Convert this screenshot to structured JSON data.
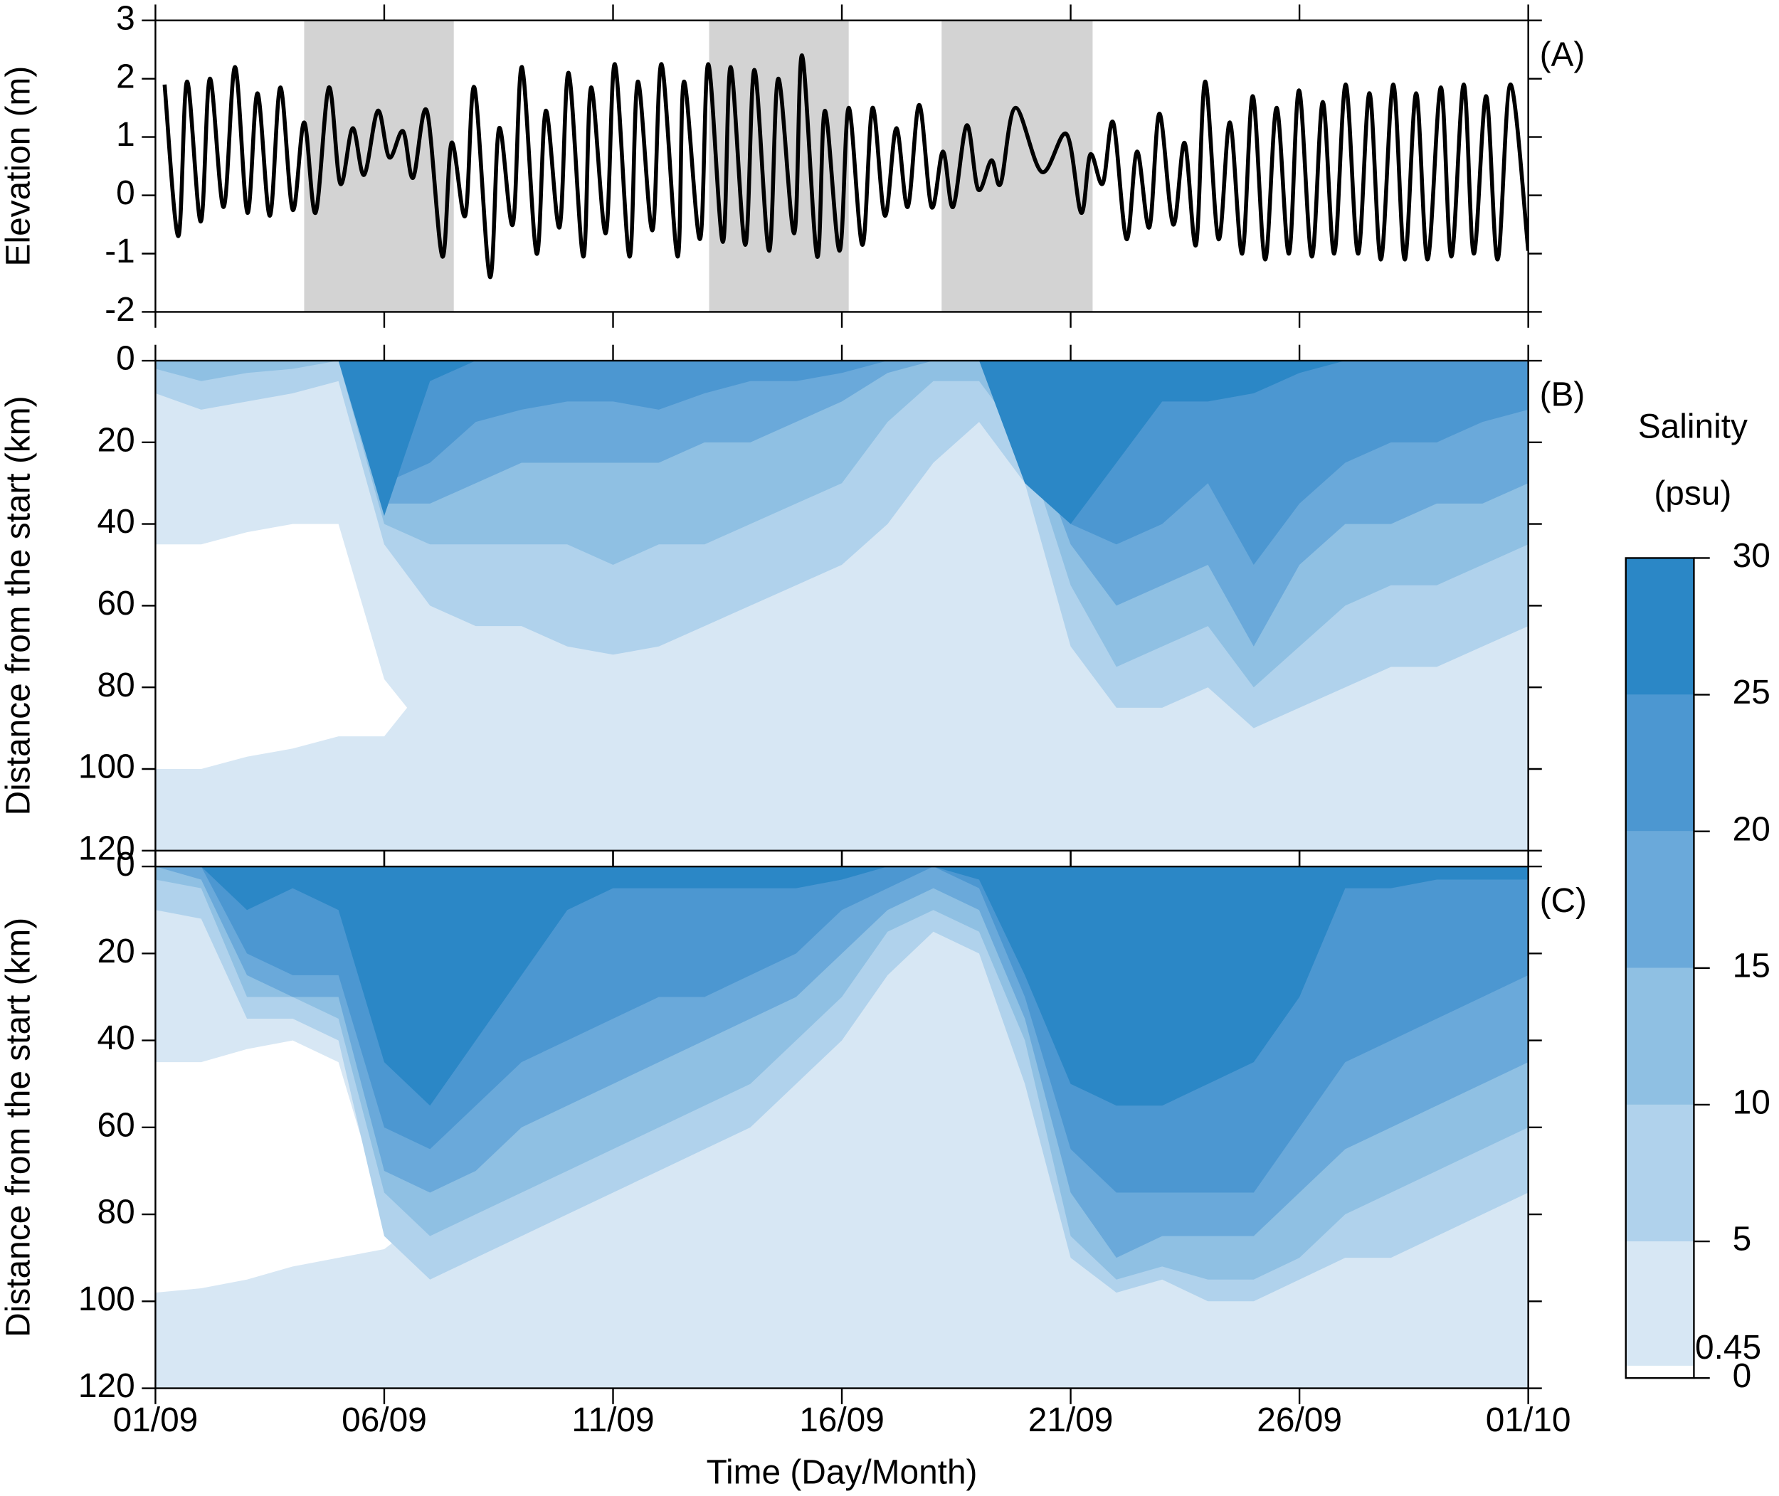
{
  "chart_data": [
    {
      "type": "line",
      "label": "(A)",
      "ylabel": "Elevation (m)",
      "xlim": [
        0,
        30
      ],
      "xticks": [
        0,
        5,
        10,
        15,
        20,
        25,
        30
      ],
      "xtick_labels": false,
      "ylim": [
        -2,
        3
      ],
      "yticks": [
        -2,
        -1,
        0,
        1,
        2,
        3
      ],
      "shaded_spans": [
        [
          3.25,
          6.52
        ],
        [
          12.1,
          15.15
        ],
        [
          17.18,
          20.48
        ]
      ],
      "shade_color": "#d3d3d3",
      "series": [
        {
          "color": "#000000",
          "x": [
            0.2,
            0.5,
            0.69,
            0.99,
            1.19,
            1.49,
            1.74,
            2.01,
            2.23,
            2.5,
            2.73,
            3.0,
            3.25,
            3.5,
            3.79,
            4.04,
            4.31,
            4.56,
            4.86,
            5.11,
            5.41,
            5.63,
            5.93,
            6.27,
            6.47,
            6.77,
            6.97,
            7.31,
            7.51,
            7.81,
            8.01,
            8.33,
            8.53,
            8.83,
            9.03,
            9.35,
            9.52,
            9.84,
            10.04,
            10.36,
            10.54,
            10.86,
            11.06,
            11.41,
            11.55,
            11.9,
            12.08,
            12.4,
            12.57,
            12.89,
            13.09,
            13.41,
            13.61,
            13.96,
            14.13,
            14.46,
            14.63,
            14.95,
            15.15,
            15.45,
            15.67,
            15.94,
            16.19,
            16.44,
            16.69,
            16.96,
            17.21,
            17.43,
            17.73,
            17.98,
            18.27,
            18.47,
            18.79,
            19.37,
            19.91,
            20.23,
            20.43,
            20.7,
            20.93,
            21.22,
            21.45,
            21.72,
            21.94,
            22.24,
            22.49,
            22.74,
            22.94,
            23.23,
            23.48,
            23.75,
            23.98,
            24.25,
            24.5,
            24.77,
            24.99,
            25.27,
            25.51,
            25.76,
            26.01,
            26.28,
            26.53,
            26.78,
            27.05,
            27.3,
            27.55,
            27.8,
            28.09,
            28.32,
            28.59,
            28.81,
            29.08,
            29.33,
            29.61,
            30.0
          ],
          "values": [
            1.9,
            -0.7,
            1.95,
            -0.45,
            2.0,
            -0.2,
            2.2,
            -0.3,
            1.75,
            -0.35,
            1.85,
            -0.25,
            1.25,
            -0.3,
            1.85,
            0.2,
            1.15,
            0.35,
            1.45,
            0.65,
            1.1,
            0.3,
            1.45,
            -1.05,
            0.9,
            -0.35,
            1.85,
            -1.4,
            1.15,
            -0.5,
            2.2,
            -1.0,
            1.45,
            -0.55,
            2.1,
            -1.05,
            1.85,
            -0.65,
            2.25,
            -1.05,
            1.95,
            -0.6,
            2.25,
            -1.05,
            1.95,
            -0.75,
            2.25,
            -0.8,
            2.2,
            -0.85,
            2.15,
            -0.95,
            2.0,
            -0.65,
            2.4,
            -1.05,
            1.45,
            -0.95,
            1.5,
            -0.85,
            1.5,
            -0.35,
            1.15,
            -0.2,
            1.55,
            -0.2,
            0.75,
            -0.2,
            1.2,
            0.1,
            0.6,
            0.2,
            1.5,
            0.4,
            1.05,
            -0.3,
            0.7,
            0.2,
            1.25,
            -0.75,
            0.75,
            -0.55,
            1.4,
            -0.5,
            0.9,
            -0.85,
            1.95,
            -0.75,
            1.25,
            -1.0,
            1.7,
            -1.1,
            1.5,
            -1.0,
            1.8,
            -1.05,
            1.6,
            -1.0,
            1.9,
            -1.0,
            1.75,
            -1.1,
            1.9,
            -1.1,
            1.75,
            -1.1,
            1.85,
            -1.05,
            1.9,
            -1.0,
            1.7,
            -1.1,
            1.9,
            -0.95
          ]
        }
      ]
    },
    {
      "type": "contour",
      "label": "(B)",
      "ylabel": "Distance from the start (km)",
      "xlim": [
        0,
        30
      ],
      "xticks": [
        0,
        5,
        10,
        15,
        20,
        25,
        30
      ],
      "xtick_labels": false,
      "ylim": [
        0,
        120
      ],
      "yticks": [
        0,
        20,
        40,
        60,
        80,
        100,
        120
      ],
      "y_inverted": true,
      "x": [
        0,
        1,
        2,
        3,
        4,
        5,
        6,
        7,
        8,
        9,
        10,
        11,
        12,
        13,
        14,
        15,
        16,
        17,
        18,
        19,
        20,
        21,
        22,
        23,
        24,
        25,
        26,
        27,
        28,
        29,
        30
      ],
      "isodepth": [
        [
          8,
          12,
          10,
          8,
          5,
          45,
          60,
          65,
          65,
          70,
          72,
          70,
          65,
          60,
          55,
          50,
          40,
          25,
          15,
          30,
          70,
          85,
          85,
          80,
          90,
          85,
          80,
          75,
          75,
          70,
          65
        ],
        [
          2,
          5,
          3,
          2,
          0,
          40,
          45,
          45,
          45,
          45,
          50,
          45,
          45,
          40,
          35,
          30,
          15,
          5,
          5,
          20,
          55,
          75,
          70,
          65,
          80,
          70,
          60,
          55,
          55,
          50,
          45
        ],
        [
          0,
          0,
          0,
          0,
          0,
          35,
          35,
          30,
          25,
          25,
          25,
          25,
          20,
          20,
          15,
          10,
          3,
          0,
          0,
          15,
          45,
          60,
          55,
          50,
          70,
          50,
          40,
          40,
          35,
          35,
          30
        ],
        [
          0,
          0,
          0,
          0,
          0,
          30,
          25,
          15,
          12,
          10,
          10,
          12,
          8,
          5,
          5,
          3,
          0,
          0,
          0,
          10,
          40,
          45,
          40,
          30,
          50,
          35,
          25,
          20,
          20,
          15,
          12
        ],
        [
          0,
          0,
          0,
          0,
          0,
          38,
          5,
          0,
          0,
          0,
          0,
          0,
          0,
          0,
          0,
          0,
          0,
          0,
          0,
          30,
          40,
          25,
          10,
          10,
          8,
          3,
          0,
          0,
          0,
          0,
          0
        ]
      ],
      "fresh_top": [
        45,
        45,
        42,
        40,
        40,
        78,
        null,
        null,
        null,
        null,
        null,
        null,
        null,
        null,
        null,
        null,
        null,
        null,
        null,
        null,
        null,
        null,
        null,
        null,
        null,
        null,
        null,
        null,
        null,
        null,
        null
      ],
      "fresh_bottom": [
        100,
        100,
        97,
        95,
        92,
        92,
        null,
        null,
        null,
        null,
        null,
        null,
        null,
        null,
        null,
        null,
        null,
        null,
        null,
        null,
        null,
        null,
        null,
        null,
        null,
        null,
        null,
        null,
        null,
        null,
        null
      ]
    },
    {
      "type": "contour",
      "label": "(C)",
      "ylabel": "Distance from the start (km)",
      "xlabel": "Time (Day/Month)",
      "xlim": [
        0,
        30
      ],
      "xticks": [
        {
          "value": 0,
          "label": "01/09"
        },
        {
          "value": 5,
          "label": "06/09"
        },
        {
          "value": 10,
          "label": "11/09"
        },
        {
          "value": 15,
          "label": "16/09"
        },
        {
          "value": 20,
          "label": "21/09"
        },
        {
          "value": 25,
          "label": "26/09"
        },
        {
          "value": 30,
          "label": "01/10"
        }
      ],
      "xtick_labels": true,
      "ylim": [
        0,
        120
      ],
      "yticks": [
        0,
        20,
        40,
        60,
        80,
        100,
        120
      ],
      "y_inverted": true,
      "x": [
        0,
        1,
        2,
        3,
        4,
        5,
        6,
        7,
        8,
        9,
        10,
        11,
        12,
        13,
        14,
        15,
        16,
        17,
        18,
        19,
        20,
        21,
        22,
        23,
        24,
        25,
        26,
        27,
        28,
        29,
        30
      ],
      "isodepth": [
        [
          10,
          12,
          35,
          35,
          40,
          85,
          95,
          90,
          85,
          80,
          75,
          70,
          65,
          60,
          50,
          40,
          25,
          15,
          20,
          50,
          90,
          98,
          95,
          100,
          100,
          95,
          90,
          90,
          85,
          80,
          75
        ],
        [
          3,
          5,
          30,
          30,
          35,
          75,
          85,
          80,
          75,
          70,
          65,
          60,
          55,
          50,
          40,
          30,
          15,
          10,
          15,
          40,
          85,
          95,
          92,
          95,
          95,
          90,
          80,
          75,
          70,
          65,
          60
        ],
        [
          0,
          3,
          25,
          30,
          30,
          70,
          75,
          70,
          60,
          55,
          50,
          45,
          40,
          35,
          30,
          20,
          10,
          5,
          10,
          35,
          75,
          90,
          85,
          85,
          85,
          75,
          65,
          60,
          55,
          50,
          45
        ],
        [
          0,
          0,
          20,
          25,
          25,
          60,
          65,
          55,
          45,
          40,
          35,
          30,
          30,
          25,
          20,
          10,
          5,
          0,
          5,
          30,
          65,
          75,
          75,
          75,
          75,
          60,
          45,
          40,
          35,
          30,
          25
        ],
        [
          0,
          0,
          10,
          5,
          10,
          45,
          55,
          40,
          25,
          10,
          5,
          5,
          5,
          5,
          5,
          3,
          0,
          0,
          3,
          25,
          50,
          55,
          55,
          50,
          45,
          30,
          5,
          5,
          3,
          3,
          3
        ]
      ],
      "fresh_top": [
        45,
        45,
        42,
        40,
        45,
        80,
        null,
        null,
        null,
        null,
        null,
        null,
        null,
        null,
        null,
        null,
        null,
        null,
        null,
        null,
        null,
        null,
        null,
        null,
        null,
        null,
        null,
        null,
        null,
        null,
        null
      ],
      "fresh_bottom": [
        98,
        97,
        95,
        92,
        90,
        88,
        null,
        null,
        null,
        null,
        null,
        null,
        null,
        null,
        null,
        null,
        null,
        null,
        null,
        null,
        null,
        null,
        null,
        null,
        null,
        null,
        null,
        null,
        null,
        null,
        null
      ]
    },
    {
      "type": "colorbar",
      "title": [
        "Salinity",
        "(psu)"
      ],
      "levels": [
        0,
        0.45,
        5,
        10,
        15,
        20,
        25,
        30
      ],
      "colors": [
        "#ffffff",
        "#d7e7f4",
        "#b0d2ec",
        "#8fc0e3",
        "#6aa9da",
        "#4c97d1",
        "#2b87c6"
      ],
      "ticks": [
        0,
        5,
        10,
        15,
        20,
        25,
        30
      ],
      "threshold_color": "#ff0000"
    }
  ]
}
